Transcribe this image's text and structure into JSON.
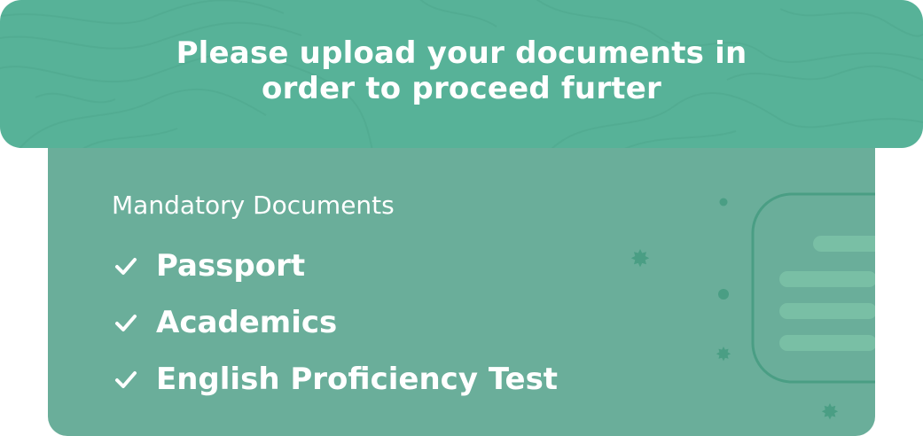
{
  "header": {
    "title_line1": "Please upload your documents in",
    "title_line2": "order to proceed furter"
  },
  "documents": {
    "section_label": "Mandatory Documents",
    "items": [
      {
        "label": "Passport",
        "icon": "checkmark-icon"
      },
      {
        "label": "Academics",
        "icon": "checkmark-icon"
      },
      {
        "label": "English Proficiency Test",
        "icon": "checkmark-icon"
      }
    ]
  },
  "colors": {
    "banner": "#57b298",
    "card": "#6aae9a",
    "accent": "#4a9e84",
    "text": "#ffffff"
  },
  "illustration": {
    "icon": "document-illustration-icon"
  }
}
